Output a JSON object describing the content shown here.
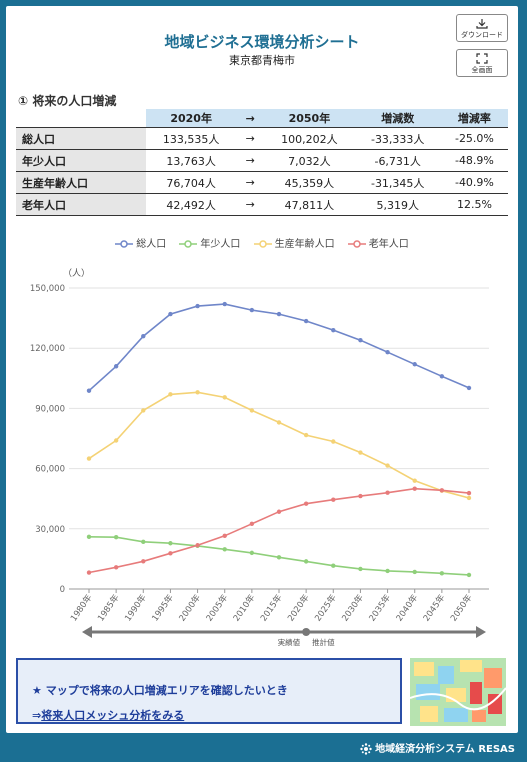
{
  "header": {
    "title": "地域ビジネス環境分析シート",
    "subtitle": "東京都青梅市",
    "download_label": "ダウンロード",
    "fullscreen_label": "全画面"
  },
  "section": {
    "title": "① 将来の人口増減"
  },
  "table": {
    "headers": [
      "2020年",
      "→",
      "2050年",
      "増減数",
      "増減率"
    ],
    "rows": [
      {
        "label": "総人口",
        "v2020": "133,535人",
        "arrow": "→",
        "v2050": "100,202人",
        "diff": "-33,333人",
        "rate": "-25.0%"
      },
      {
        "label": "年少人口",
        "v2020": "13,763人",
        "arrow": "→",
        "v2050": "7,032人",
        "diff": "-6,731人",
        "rate": "-48.9%"
      },
      {
        "label": "生産年齢人口",
        "v2020": "76,704人",
        "arrow": "→",
        "v2050": "45,359人",
        "diff": "-31,345人",
        "rate": "-40.9%"
      },
      {
        "label": "老年人口",
        "v2020": "42,492人",
        "arrow": "→",
        "v2050": "47,811人",
        "diff": "5,319人",
        "rate": "12.5%"
      }
    ]
  },
  "chart_data": {
    "type": "line",
    "ylabel": "（人）",
    "ylim": [
      0,
      150000
    ],
    "yticks": [
      "0",
      "30,000",
      "60,000",
      "90,000",
      "120,000",
      "150,000"
    ],
    "categories": [
      "1980年",
      "1985年",
      "1990年",
      "1995年",
      "2000年",
      "2005年",
      "2010年",
      "2015年",
      "2020年",
      "2025年",
      "2030年",
      "2035年",
      "2040年",
      "2045年",
      "2050年"
    ],
    "legend_position": "top-center",
    "grid": true,
    "actual_label": "実績値",
    "projected_label": "推計値",
    "series": [
      {
        "name": "総人口",
        "color": "#6f86c9",
        "values": [
          98800,
          111000,
          126000,
          137000,
          141000,
          142000,
          139000,
          137000,
          133535,
          129000,
          124000,
          118000,
          112000,
          106000,
          100202
        ]
      },
      {
        "name": "年少人口",
        "color": "#8fcf7a",
        "values": [
          26000,
          25800,
          23500,
          22800,
          21500,
          19800,
          18000,
          15800,
          13763,
          11600,
          10000,
          9000,
          8500,
          7800,
          7032
        ]
      },
      {
        "name": "生産年齢人口",
        "color": "#f4d275",
        "values": [
          65000,
          74000,
          89000,
          97000,
          98000,
          95500,
          89000,
          83000,
          76704,
          73500,
          68000,
          61500,
          54000,
          49000,
          45359
        ]
      },
      {
        "name": "老年人口",
        "color": "#e77b7b",
        "values": [
          8200,
          10800,
          13800,
          17800,
          21800,
          26500,
          32500,
          38500,
          42492,
          44500,
          46300,
          48000,
          50000,
          49200,
          47811
        ]
      }
    ]
  },
  "bottom": {
    "line1": "★ マップで将来の人口増減エリアを確認したいとき",
    "line2_prefix": "⇒",
    "line2_link": "将来人口メッシュ分析をみる"
  },
  "footer": {
    "brand": "地域経済分析システム RESAS"
  },
  "colors": {
    "frame": "#1b6f93",
    "title": "#1f6f93",
    "header_bg": "#cde3f3",
    "box_border": "#2b4fa7"
  }
}
